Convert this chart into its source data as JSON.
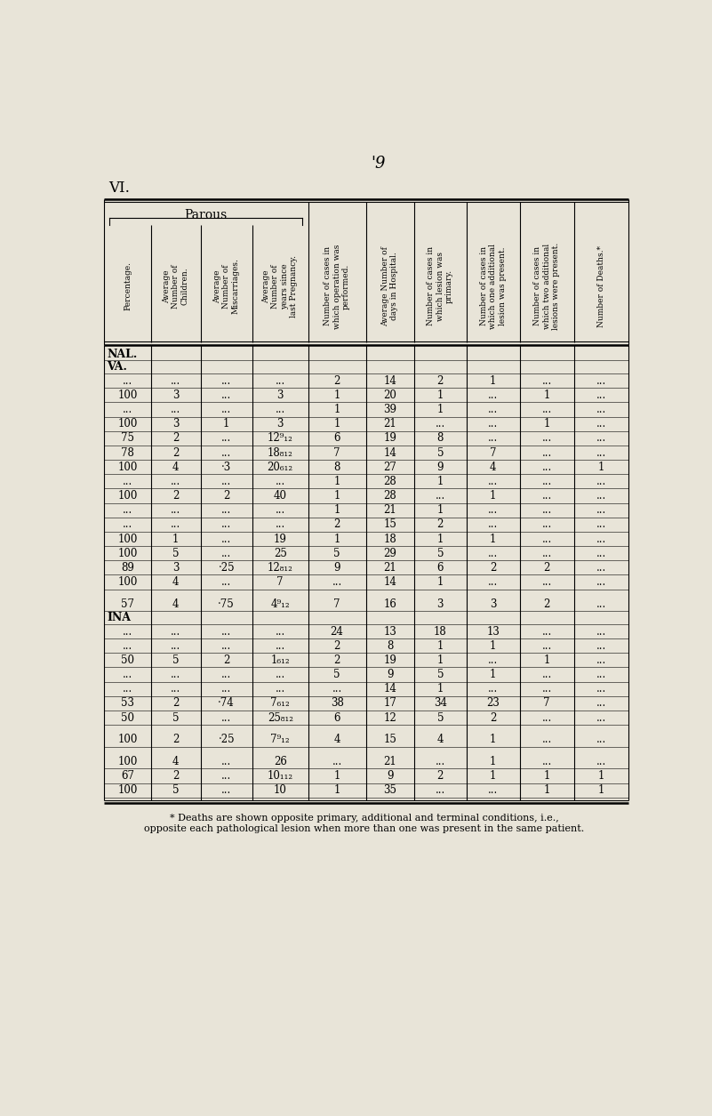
{
  "title_top": "'9",
  "section_label": "VI.",
  "parous_label": "Parous",
  "bg_color": "#e8e4d8",
  "col_headers": [
    "Percentage.",
    "Average\nNumber of\nChildren.",
    "Average\nNumber of\nMiscarriages.",
    "Average\nNumber of\nyears since\nlast Pregnancy.",
    "Number of cases in\nwhich operation was\nperformed.",
    "Average Number of\ndays in Hospital.",
    "Number of cases in\nwhich lesion was\nprimary.",
    "Number of cases in\nwhich one additional\nlesion was present.",
    "Number of cases in\nwhich two additional\nlesions were present.",
    "Number of Deaths.*"
  ],
  "section_rows": [
    {
      "label": "NAL.",
      "type": "section"
    },
    {
      "label": "VA.",
      "type": "section"
    },
    {
      "data": [
        "...",
        "...",
        "...",
        "...",
        "2",
        "14",
        "2",
        "1",
        "...",
        "..."
      ]
    },
    {
      "data": [
        "100",
        "3",
        "...",
        "3",
        "1",
        "20",
        "1",
        "...",
        "1",
        "..."
      ]
    },
    {
      "data": [
        "...",
        "...",
        "...",
        "...",
        "1",
        "39",
        "1",
        "...",
        "...",
        "..."
      ]
    },
    {
      "data": [
        "100",
        "3",
        "1",
        "3",
        "1",
        "21",
        "...",
        "...",
        "1",
        "..."
      ]
    },
    {
      "data": [
        "75",
        "2",
        "...",
        "12⁹₁₂",
        "6",
        "19",
        "8",
        "...",
        "...",
        "..."
      ]
    },
    {
      "data": [
        "78",
        "2",
        "...",
        "18₈₁₂",
        "7",
        "14",
        "5",
        "7",
        "...",
        "..."
      ]
    },
    {
      "data": [
        "100",
        "4",
        "·3",
        "20₆₁₂",
        "8",
        "27",
        "9",
        "4",
        "...",
        "1"
      ]
    },
    {
      "data": [
        "...",
        "...",
        "...",
        "...",
        "1",
        "28",
        "1",
        "...",
        "...",
        "..."
      ]
    },
    {
      "data": [
        "100",
        "2",
        "2",
        "40",
        "1",
        "28",
        "...",
        "1",
        "...",
        "..."
      ]
    },
    {
      "data": [
        "...",
        "...",
        "...",
        "...",
        "1",
        "21",
        "1",
        "...",
        "...",
        "..."
      ]
    },
    {
      "data": [
        "...",
        "...",
        "...",
        "...",
        "2",
        "15",
        "2",
        "...",
        "...",
        "..."
      ]
    },
    {
      "data": [
        "100",
        "1",
        "...",
        "19",
        "1",
        "18",
        "1",
        "1",
        "...",
        "..."
      ]
    },
    {
      "data": [
        "100",
        "5",
        "...",
        "25",
        "5",
        "29",
        "5",
        "...",
        "...",
        "..."
      ]
    },
    {
      "data": [
        "89",
        "3",
        "·25",
        "12₈₁₂",
        "9",
        "21",
        "6",
        "2",
        "2",
        "..."
      ]
    },
    {
      "data": [
        "100",
        "4",
        "...",
        "7",
        "...",
        "14",
        "1",
        "...",
        "...",
        "..."
      ]
    },
    {
      "data": [
        "57",
        "4",
        "·75",
        "4⁹₁₂",
        "7",
        "16",
        "3",
        "3",
        "2",
        "..."
      ],
      "extra_space_before": true
    },
    {
      "label": "INA",
      "type": "section"
    },
    {
      "data": [
        "...",
        "...",
        "...",
        "...",
        "24",
        "13",
        "18",
        "13",
        "...",
        "..."
      ]
    },
    {
      "data": [
        "...",
        "...",
        "...",
        "...",
        "2",
        "8",
        "1",
        "1",
        "...",
        "..."
      ]
    },
    {
      "data": [
        "50",
        "5",
        "2",
        "1₆₁₂",
        "2",
        "19",
        "1",
        "...",
        "1",
        "..."
      ]
    },
    {
      "data": [
        "...",
        "...",
        "...",
        "...",
        "5",
        "9",
        "5",
        "1",
        "...",
        "..."
      ]
    },
    {
      "data": [
        "...",
        "...",
        "...",
        "...",
        "...",
        "14",
        "1",
        "...",
        "...",
        "..."
      ]
    },
    {
      "data": [
        "53",
        "2",
        "·74",
        "7₆₁₂",
        "38",
        "17",
        "34",
        "23",
        "7",
        "..."
      ]
    },
    {
      "data": [
        "50",
        "5",
        "...",
        "25₈₁₂",
        "6",
        "12",
        "5",
        "2",
        "...",
        "..."
      ]
    },
    {
      "data": [
        "100",
        "2",
        "·25",
        "7⁹₁₂",
        "4",
        "15",
        "4",
        "1",
        "...",
        "..."
      ],
      "extra_space_before": true
    },
    {
      "data": [
        "100",
        "4",
        "...",
        "26",
        "...",
        "21",
        "...",
        "1",
        "...",
        "..."
      ],
      "extra_space_before": true
    },
    {
      "data": [
        "67",
        "2",
        "...",
        "10₁₁₂",
        "1",
        "9",
        "2",
        "1",
        "1",
        "1"
      ]
    },
    {
      "data": [
        "100",
        "5",
        "...",
        "10",
        "1",
        "35",
        "...",
        "...",
        "1",
        "1"
      ]
    }
  ],
  "footnote": "* Deaths are shown opposite primary, additional and terminal conditions, i.e.,\nopposite each pathological lesion when more than one was present in the same patient."
}
